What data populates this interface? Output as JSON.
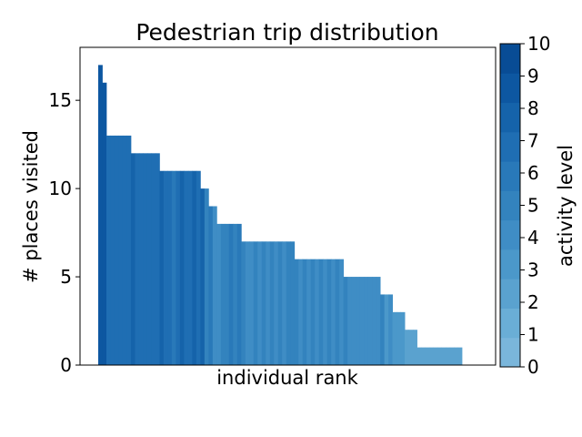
{
  "chart_data": {
    "type": "bar",
    "title": "Pedestrian trip distribution",
    "xlabel": "individual rank",
    "ylabel": "# places visited",
    "ylim": [
      0,
      18
    ],
    "yticks": [
      0,
      5,
      10,
      15
    ],
    "grid": false,
    "bars": [
      {
        "value": 17,
        "activity": 9.4
      },
      {
        "value": 16,
        "activity": 9.0
      },
      {
        "value": 13,
        "activity": 7.0
      },
      {
        "value": 13,
        "activity": 7.0
      },
      {
        "value": 13,
        "activity": 7.0
      },
      {
        "value": 13,
        "activity": 7.0
      },
      {
        "value": 13,
        "activity": 7.0
      },
      {
        "value": 13,
        "activity": 7.0
      },
      {
        "value": 12,
        "activity": 7.5
      },
      {
        "value": 12,
        "activity": 6.5
      },
      {
        "value": 12,
        "activity": 7.0
      },
      {
        "value": 12,
        "activity": 6.5
      },
      {
        "value": 12,
        "activity": 7.0
      },
      {
        "value": 12,
        "activity": 6.5
      },
      {
        "value": 12,
        "activity": 7.0
      },
      {
        "value": 11,
        "activity": 7.5
      },
      {
        "value": 11,
        "activity": 6.5
      },
      {
        "value": 11,
        "activity": 7.0
      },
      {
        "value": 11,
        "activity": 6.0
      },
      {
        "value": 11,
        "activity": 7.0
      },
      {
        "value": 11,
        "activity": 7.5
      },
      {
        "value": 11,
        "activity": 6.5
      },
      {
        "value": 11,
        "activity": 7.0
      },
      {
        "value": 11,
        "activity": 7.5
      },
      {
        "value": 11,
        "activity": 6.5
      },
      {
        "value": 10,
        "activity": 7.5
      },
      {
        "value": 10,
        "activity": 4.5
      },
      {
        "value": 9,
        "activity": 6.0
      },
      {
        "value": 9,
        "activity": 4.0
      },
      {
        "value": 8,
        "activity": 4.0
      },
      {
        "value": 8,
        "activity": 5.0
      },
      {
        "value": 8,
        "activity": 5.0
      },
      {
        "value": 8,
        "activity": 5.5
      },
      {
        "value": 8,
        "activity": 5.0
      },
      {
        "value": 8,
        "activity": 5.5
      },
      {
        "value": 7,
        "activity": 4.5
      },
      {
        "value": 7,
        "activity": 4.0
      },
      {
        "value": 7,
        "activity": 3.5
      },
      {
        "value": 7,
        "activity": 4.5
      },
      {
        "value": 7,
        "activity": 4.0
      },
      {
        "value": 7,
        "activity": 4.5
      },
      {
        "value": 7,
        "activity": 4.0
      },
      {
        "value": 7,
        "activity": 5.0
      },
      {
        "value": 7,
        "activity": 4.0
      },
      {
        "value": 7,
        "activity": 4.5
      },
      {
        "value": 7,
        "activity": 4.0
      },
      {
        "value": 7,
        "activity": 4.5
      },
      {
        "value": 7,
        "activity": 5.0
      },
      {
        "value": 6,
        "activity": 4.5
      },
      {
        "value": 6,
        "activity": 4.0
      },
      {
        "value": 6,
        "activity": 4.5
      },
      {
        "value": 6,
        "activity": 3.5
      },
      {
        "value": 6,
        "activity": 4.5
      },
      {
        "value": 6,
        "activity": 4.0
      },
      {
        "value": 6,
        "activity": 4.5
      },
      {
        "value": 6,
        "activity": 4.0
      },
      {
        "value": 6,
        "activity": 4.5
      },
      {
        "value": 6,
        "activity": 4.0
      },
      {
        "value": 6,
        "activity": 4.5
      },
      {
        "value": 6,
        "activity": 4.0
      },
      {
        "value": 5,
        "activity": 5.0
      },
      {
        "value": 5,
        "activity": 4.0
      },
      {
        "value": 5,
        "activity": 4.0
      },
      {
        "value": 5,
        "activity": 4.0
      },
      {
        "value": 5,
        "activity": 4.0
      },
      {
        "value": 5,
        "activity": 4.0
      },
      {
        "value": 5,
        "activity": 4.0
      },
      {
        "value": 5,
        "activity": 4.0
      },
      {
        "value": 5,
        "activity": 4.0
      },
      {
        "value": 4,
        "activity": 4.5
      },
      {
        "value": 4,
        "activity": 3.0
      },
      {
        "value": 4,
        "activity": 3.5
      },
      {
        "value": 3,
        "activity": 3.0
      },
      {
        "value": 3,
        "activity": 3.0
      },
      {
        "value": 3,
        "activity": 3.0
      },
      {
        "value": 2,
        "activity": 2.0
      },
      {
        "value": 2,
        "activity": 2.0
      },
      {
        "value": 2,
        "activity": 2.0
      },
      {
        "value": 1,
        "activity": 1.5
      },
      {
        "value": 1,
        "activity": 1.5
      },
      {
        "value": 1,
        "activity": 1.5
      },
      {
        "value": 1,
        "activity": 1.5
      },
      {
        "value": 1,
        "activity": 1.5
      },
      {
        "value": 1,
        "activity": 1.5
      },
      {
        "value": 1,
        "activity": 1.5
      },
      {
        "value": 1,
        "activity": 1.5
      },
      {
        "value": 1,
        "activity": 1.5
      },
      {
        "value": 1,
        "activity": 1.5
      },
      {
        "value": 1,
        "activity": 1.5
      }
    ],
    "colorbar": {
      "label": "activity level",
      "range": [
        0,
        10
      ],
      "ticks": [
        0,
        1,
        2,
        3,
        4,
        5,
        6,
        7,
        8,
        9,
        10
      ],
      "colors": [
        "#7ab6db",
        "#6aaed6",
        "#5aa2cf",
        "#4b98ca",
        "#3f8dc5",
        "#3383be",
        "#2979b9",
        "#1f6eb3",
        "#1563aa",
        "#0d57a1",
        "#084c95"
      ]
    }
  }
}
